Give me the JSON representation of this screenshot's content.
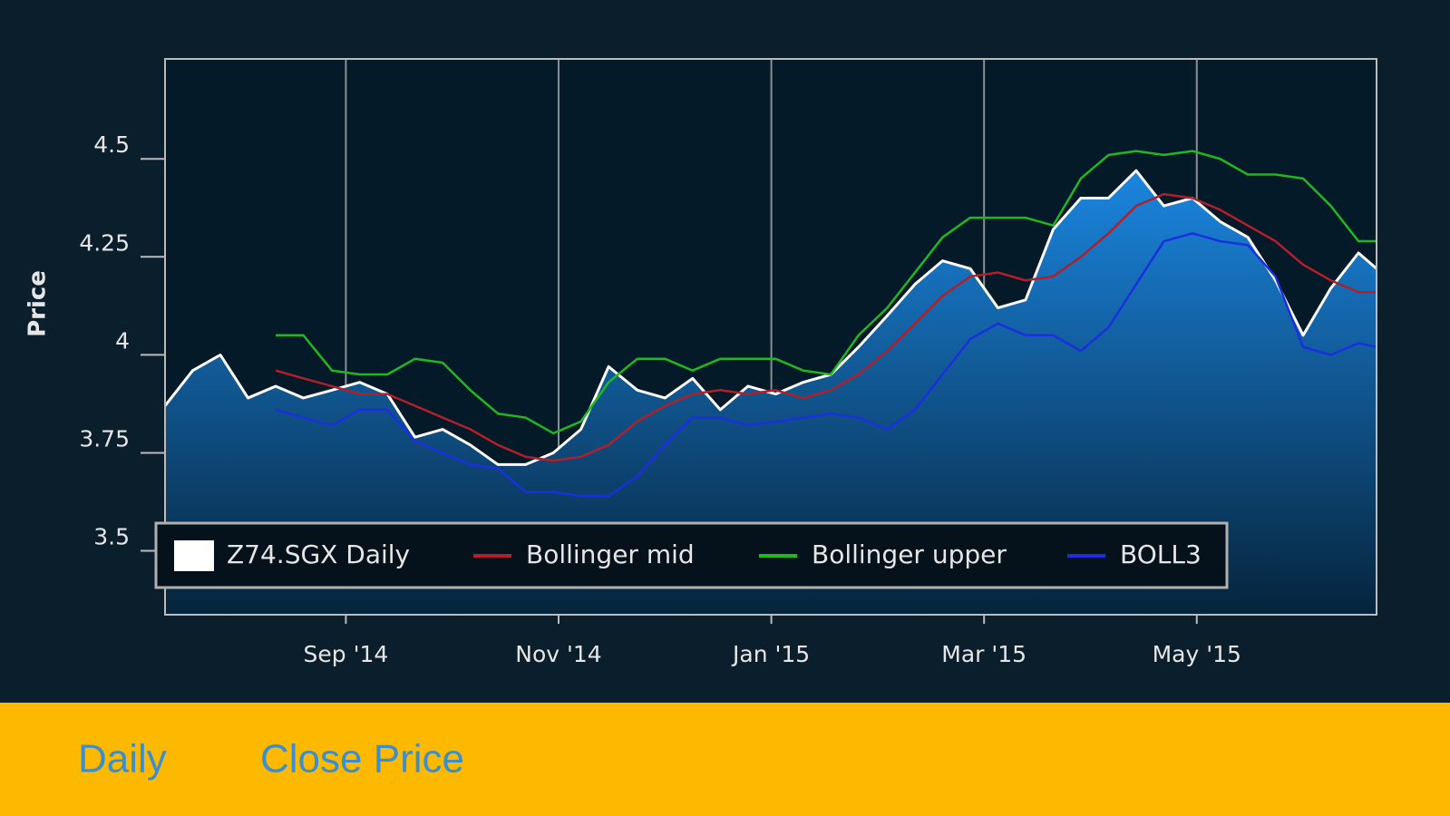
{
  "chart_data": {
    "type": "line",
    "y_label": "Price",
    "x": [
      0.3,
      0.56,
      0.82,
      1.08,
      1.34,
      1.6,
      1.87,
      2.13,
      2.39,
      2.65,
      2.91,
      3.17,
      3.43,
      3.69,
      3.95,
      4.21,
      4.47,
      4.74,
      5.0,
      5.26,
      5.52,
      5.78,
      6.04,
      6.3,
      6.56,
      6.82,
      7.09,
      7.35,
      7.61,
      7.87,
      8.13,
      8.39,
      8.65,
      8.91,
      9.17,
      9.43,
      9.69,
      9.96,
      10.22,
      10.48,
      10.74,
      11.0,
      11.26,
      11.52,
      11.69
    ],
    "series": [
      {
        "name": "Z74.SGX Daily",
        "color": "#ffffff",
        "area": true,
        "values": [
          3.87,
          3.96,
          4.0,
          3.89,
          3.92,
          3.89,
          3.91,
          3.93,
          3.9,
          3.79,
          3.81,
          3.77,
          3.72,
          3.72,
          3.75,
          3.81,
          3.97,
          3.91,
          3.89,
          3.94,
          3.86,
          3.92,
          3.9,
          3.93,
          3.95,
          4.02,
          4.1,
          4.18,
          4.24,
          4.22,
          4.12,
          4.14,
          4.32,
          4.4,
          4.4,
          4.47,
          4.38,
          4.4,
          4.34,
          4.3,
          4.19,
          4.05,
          4.17,
          4.26,
          4.22
        ]
      },
      {
        "name": "Bollinger mid",
        "color": "#b0202a",
        "values": [
          null,
          null,
          null,
          null,
          3.96,
          3.94,
          3.92,
          3.9,
          3.9,
          3.87,
          3.84,
          3.81,
          3.77,
          3.74,
          3.73,
          3.74,
          3.77,
          3.83,
          3.87,
          3.9,
          3.91,
          3.9,
          3.91,
          3.89,
          3.91,
          3.95,
          4.01,
          4.08,
          4.15,
          4.2,
          4.21,
          4.19,
          4.2,
          4.25,
          4.31,
          4.38,
          4.41,
          4.4,
          4.37,
          4.33,
          4.29,
          4.23,
          4.19,
          4.16,
          4.16
        ]
      },
      {
        "name": "Bollinger upper",
        "color": "#1fb81f",
        "values": [
          null,
          null,
          null,
          null,
          4.05,
          4.05,
          3.96,
          3.95,
          3.95,
          3.99,
          3.98,
          3.91,
          3.85,
          3.84,
          3.8,
          3.83,
          3.93,
          3.99,
          3.99,
          3.96,
          3.99,
          3.99,
          3.99,
          3.96,
          3.95,
          4.05,
          4.12,
          4.21,
          4.3,
          4.35,
          4.35,
          4.35,
          4.33,
          4.45,
          4.51,
          4.52,
          4.51,
          4.52,
          4.5,
          4.46,
          4.46,
          4.45,
          4.38,
          4.29,
          4.29
        ]
      },
      {
        "name": "BOLL3",
        "color": "#1a2fe0",
        "values": [
          null,
          null,
          null,
          null,
          3.86,
          3.84,
          3.82,
          3.86,
          3.86,
          3.78,
          3.75,
          3.72,
          3.71,
          3.65,
          3.65,
          3.64,
          3.64,
          3.69,
          3.77,
          3.84,
          3.84,
          3.82,
          3.83,
          3.84,
          3.85,
          3.84,
          3.81,
          3.86,
          3.95,
          4.04,
          4.08,
          4.05,
          4.05,
          4.01,
          4.07,
          4.18,
          4.29,
          4.31,
          4.29,
          4.28,
          4.2,
          4.02,
          4.0,
          4.03,
          4.02
        ]
      }
    ],
    "xlim": [
      0.3,
      11.69
    ],
    "xticks": [
      {
        "value": 2,
        "label": "Sep '14"
      },
      {
        "value": 4,
        "label": "Nov '14"
      },
      {
        "value": 6,
        "label": "Jan '15"
      },
      {
        "value": 8,
        "label": "Mar '15"
      },
      {
        "value": 10,
        "label": "May '15"
      }
    ],
    "ylim": [
      3.337,
      4.755
    ],
    "yticks": [
      4.5,
      4.25,
      4,
      3.75,
      3.5
    ],
    "xgrid": true,
    "legend": "lower left"
  },
  "footer": {
    "items": [
      "Daily",
      "Close Price"
    ]
  }
}
